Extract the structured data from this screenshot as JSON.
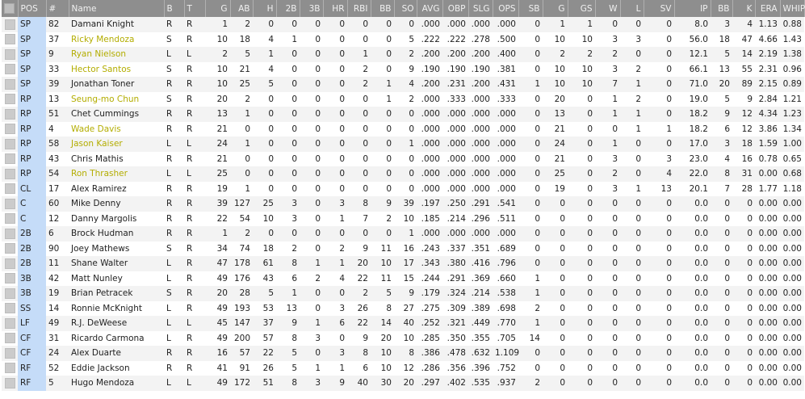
{
  "colors": {
    "header_bg": "#8e8e8e",
    "pos_column": "#c5dcf8",
    "highlight_name": "#b3ad00"
  },
  "columns": [
    "POS",
    "#",
    "Name",
    "B",
    "T",
    "G",
    "AB",
    "H",
    "2B",
    "3B",
    "HR",
    "RBI",
    "BB",
    "SO",
    "AVG",
    "OBP",
    "SLG",
    "OPS",
    "SB",
    "G",
    "GS",
    "W",
    "L",
    "SV",
    "IP",
    "BB",
    "K",
    "ERA",
    "WHIP"
  ],
  "rows": [
    {
      "hl": false,
      "v": [
        "SP",
        "82",
        "Damani Knight",
        "R",
        "R",
        "1",
        "2",
        "0",
        "0",
        "0",
        "0",
        "0",
        "0",
        "0",
        ".000",
        ".000",
        ".000",
        ".000",
        "0",
        "1",
        "1",
        "0",
        "0",
        "0",
        "8.0",
        "3",
        "4",
        "1.13",
        "0.88"
      ]
    },
    {
      "hl": true,
      "v": [
        "SP",
        "37",
        "Ricky Mendoza",
        "S",
        "R",
        "10",
        "18",
        "4",
        "1",
        "0",
        "0",
        "0",
        "0",
        "5",
        ".222",
        ".222",
        ".278",
        ".500",
        "0",
        "10",
        "10",
        "3",
        "3",
        "0",
        "56.0",
        "18",
        "47",
        "4.66",
        "1.43"
      ]
    },
    {
      "hl": true,
      "v": [
        "SP",
        "9",
        "Ryan Nielson",
        "L",
        "L",
        "2",
        "5",
        "1",
        "0",
        "0",
        "0",
        "1",
        "0",
        "2",
        ".200",
        ".200",
        ".200",
        ".400",
        "0",
        "2",
        "2",
        "2",
        "0",
        "0",
        "12.1",
        "5",
        "14",
        "2.19",
        "1.38"
      ]
    },
    {
      "hl": true,
      "v": [
        "SP",
        "33",
        "Hector Santos",
        "S",
        "R",
        "10",
        "21",
        "4",
        "0",
        "0",
        "0",
        "2",
        "0",
        "9",
        ".190",
        ".190",
        ".190",
        ".381",
        "0",
        "10",
        "10",
        "3",
        "2",
        "0",
        "66.1",
        "13",
        "55",
        "2.31",
        "0.96"
      ]
    },
    {
      "hl": false,
      "v": [
        "SP",
        "39",
        "Jonathan Toner",
        "R",
        "R",
        "10",
        "25",
        "5",
        "0",
        "0",
        "0",
        "2",
        "1",
        "4",
        ".200",
        ".231",
        ".200",
        ".431",
        "1",
        "10",
        "10",
        "7",
        "1",
        "0",
        "71.0",
        "20",
        "89",
        "2.15",
        "0.89"
      ]
    },
    {
      "hl": true,
      "v": [
        "RP",
        "13",
        "Seung-mo Chun",
        "S",
        "R",
        "20",
        "2",
        "0",
        "0",
        "0",
        "0",
        "0",
        "1",
        "2",
        ".000",
        ".333",
        ".000",
        ".333",
        "0",
        "20",
        "0",
        "1",
        "2",
        "0",
        "19.0",
        "5",
        "9",
        "2.84",
        "1.21"
      ]
    },
    {
      "hl": false,
      "v": [
        "RP",
        "51",
        "Chet Cummings",
        "R",
        "R",
        "13",
        "1",
        "0",
        "0",
        "0",
        "0",
        "0",
        "0",
        "0",
        ".000",
        ".000",
        ".000",
        ".000",
        "0",
        "13",
        "0",
        "1",
        "1",
        "0",
        "18.2",
        "9",
        "12",
        "4.34",
        "1.23"
      ]
    },
    {
      "hl": true,
      "v": [
        "RP",
        "4",
        "Wade Davis",
        "R",
        "R",
        "21",
        "0",
        "0",
        "0",
        "0",
        "0",
        "0",
        "0",
        "0",
        ".000",
        ".000",
        ".000",
        ".000",
        "0",
        "21",
        "0",
        "0",
        "1",
        "1",
        "18.2",
        "6",
        "12",
        "3.86",
        "1.34"
      ]
    },
    {
      "hl": true,
      "v": [
        "RP",
        "58",
        "Jason Kaiser",
        "L",
        "L",
        "24",
        "1",
        "0",
        "0",
        "0",
        "0",
        "0",
        "0",
        "1",
        ".000",
        ".000",
        ".000",
        ".000",
        "0",
        "24",
        "0",
        "1",
        "0",
        "0",
        "17.0",
        "3",
        "18",
        "1.59",
        "1.00"
      ]
    },
    {
      "hl": false,
      "v": [
        "RP",
        "43",
        "Chris Mathis",
        "R",
        "R",
        "21",
        "0",
        "0",
        "0",
        "0",
        "0",
        "0",
        "0",
        "0",
        ".000",
        ".000",
        ".000",
        ".000",
        "0",
        "21",
        "0",
        "3",
        "0",
        "3",
        "23.0",
        "4",
        "16",
        "0.78",
        "0.65"
      ]
    },
    {
      "hl": true,
      "v": [
        "RP",
        "54",
        "Ron Thrasher",
        "L",
        "L",
        "25",
        "0",
        "0",
        "0",
        "0",
        "0",
        "0",
        "0",
        "0",
        ".000",
        ".000",
        ".000",
        ".000",
        "0",
        "25",
        "0",
        "2",
        "0",
        "4",
        "22.0",
        "8",
        "31",
        "0.00",
        "0.68"
      ]
    },
    {
      "hl": false,
      "v": [
        "CL",
        "17",
        "Alex Ramirez",
        "R",
        "R",
        "19",
        "1",
        "0",
        "0",
        "0",
        "0",
        "0",
        "0",
        "0",
        ".000",
        ".000",
        ".000",
        ".000",
        "0",
        "19",
        "0",
        "3",
        "1",
        "13",
        "20.1",
        "7",
        "28",
        "1.77",
        "1.18"
      ]
    },
    {
      "hl": false,
      "v": [
        "C",
        "60",
        "Mike Denny",
        "R",
        "R",
        "39",
        "127",
        "25",
        "3",
        "0",
        "3",
        "8",
        "9",
        "39",
        ".197",
        ".250",
        ".291",
        ".541",
        "0",
        "0",
        "0",
        "0",
        "0",
        "0",
        "0.0",
        "0",
        "0",
        "0.00",
        "0.00"
      ]
    },
    {
      "hl": false,
      "v": [
        "C",
        "12",
        "Danny Margolis",
        "R",
        "R",
        "22",
        "54",
        "10",
        "3",
        "0",
        "1",
        "7",
        "2",
        "10",
        ".185",
        ".214",
        ".296",
        ".511",
        "0",
        "0",
        "0",
        "0",
        "0",
        "0",
        "0.0",
        "0",
        "0",
        "0.00",
        "0.00"
      ]
    },
    {
      "hl": false,
      "v": [
        "2B",
        "6",
        "Brock Hudman",
        "R",
        "R",
        "1",
        "2",
        "0",
        "0",
        "0",
        "0",
        "0",
        "0",
        "1",
        ".000",
        ".000",
        ".000",
        ".000",
        "0",
        "0",
        "0",
        "0",
        "0",
        "0",
        "0.0",
        "0",
        "0",
        "0.00",
        "0.00"
      ]
    },
    {
      "hl": false,
      "v": [
        "2B",
        "90",
        "Joey Mathews",
        "S",
        "R",
        "34",
        "74",
        "18",
        "2",
        "0",
        "2",
        "9",
        "11",
        "16",
        ".243",
        ".337",
        ".351",
        ".689",
        "0",
        "0",
        "0",
        "0",
        "0",
        "0",
        "0.0",
        "0",
        "0",
        "0.00",
        "0.00"
      ]
    },
    {
      "hl": false,
      "v": [
        "2B",
        "11",
        "Shane Walter",
        "L",
        "R",
        "47",
        "178",
        "61",
        "8",
        "1",
        "1",
        "20",
        "10",
        "17",
        ".343",
        ".380",
        ".416",
        ".796",
        "0",
        "0",
        "0",
        "0",
        "0",
        "0",
        "0.0",
        "0",
        "0",
        "0.00",
        "0.00"
      ]
    },
    {
      "hl": false,
      "v": [
        "3B",
        "42",
        "Matt Nunley",
        "L",
        "R",
        "49",
        "176",
        "43",
        "6",
        "2",
        "4",
        "22",
        "11",
        "15",
        ".244",
        ".291",
        ".369",
        ".660",
        "1",
        "0",
        "0",
        "0",
        "0",
        "0",
        "0.0",
        "0",
        "0",
        "0.00",
        "0.00"
      ]
    },
    {
      "hl": false,
      "v": [
        "3B",
        "19",
        "Brian Petracek",
        "S",
        "R",
        "20",
        "28",
        "5",
        "1",
        "0",
        "0",
        "2",
        "5",
        "9",
        ".179",
        ".324",
        ".214",
        ".538",
        "1",
        "0",
        "0",
        "0",
        "0",
        "0",
        "0.0",
        "0",
        "0",
        "0.00",
        "0.00"
      ]
    },
    {
      "hl": false,
      "v": [
        "SS",
        "14",
        "Ronnie McKnight",
        "L",
        "R",
        "49",
        "193",
        "53",
        "13",
        "0",
        "3",
        "26",
        "8",
        "27",
        ".275",
        ".309",
        ".389",
        ".698",
        "2",
        "0",
        "0",
        "0",
        "0",
        "0",
        "0.0",
        "0",
        "0",
        "0.00",
        "0.00"
      ]
    },
    {
      "hl": false,
      "v": [
        "LF",
        "49",
        "R.J. DeWeese",
        "L",
        "L",
        "45",
        "147",
        "37",
        "9",
        "1",
        "6",
        "22",
        "14",
        "40",
        ".252",
        ".321",
        ".449",
        ".770",
        "1",
        "0",
        "0",
        "0",
        "0",
        "0",
        "0.0",
        "0",
        "0",
        "0.00",
        "0.00"
      ]
    },
    {
      "hl": false,
      "v": [
        "CF",
        "31",
        "Ricardo Carmona",
        "L",
        "R",
        "49",
        "200",
        "57",
        "8",
        "3",
        "0",
        "9",
        "20",
        "10",
        ".285",
        ".350",
        ".355",
        ".705",
        "14",
        "0",
        "0",
        "0",
        "0",
        "0",
        "0.0",
        "0",
        "0",
        "0.00",
        "0.00"
      ]
    },
    {
      "hl": false,
      "v": [
        "CF",
        "24",
        "Alex Duarte",
        "R",
        "R",
        "16",
        "57",
        "22",
        "5",
        "0",
        "3",
        "8",
        "10",
        "8",
        ".386",
        ".478",
        ".632",
        "1.109",
        "0",
        "0",
        "0",
        "0",
        "0",
        "0",
        "0.0",
        "0",
        "0",
        "0.00",
        "0.00"
      ]
    },
    {
      "hl": false,
      "v": [
        "RF",
        "52",
        "Eddie Jackson",
        "R",
        "R",
        "41",
        "91",
        "26",
        "5",
        "1",
        "1",
        "6",
        "10",
        "12",
        ".286",
        ".356",
        ".396",
        ".752",
        "0",
        "0",
        "0",
        "0",
        "0",
        "0",
        "0.0",
        "0",
        "0",
        "0.00",
        "0.00"
      ]
    },
    {
      "hl": false,
      "v": [
        "RF",
        "5",
        "Hugo Mendoza",
        "L",
        "L",
        "49",
        "172",
        "51",
        "8",
        "3",
        "9",
        "40",
        "30",
        "20",
        ".297",
        ".402",
        ".535",
        ".937",
        "2",
        "0",
        "0",
        "0",
        "0",
        "0",
        "0.0",
        "0",
        "0",
        "0.00",
        "0.00"
      ]
    }
  ]
}
